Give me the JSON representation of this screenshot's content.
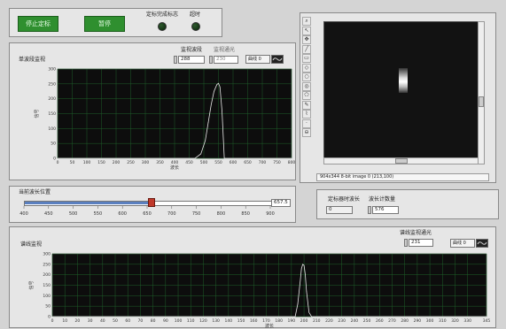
{
  "top_controls": {
    "stop_button_label": "停止定标",
    "pause_button_label": "暂停",
    "calib_done_label": "定标完成标志",
    "overrange_label": "超时"
  },
  "spectrum_panel": {
    "title": "单波段监视",
    "wavelength_ctl_label": "监视波段",
    "wavelength_value": "288",
    "extra_ctl_label": "监视通光",
    "extra_value": "230",
    "plot_btn_label": "曲线 0",
    "ylabel": "信号",
    "xlabel": "波长"
  },
  "chart_data": [
    {
      "type": "line",
      "title": "单波段监视",
      "xlabel": "波长",
      "ylabel": "信号",
      "xlim": [
        0,
        800
      ],
      "ylim": [
        0,
        300
      ],
      "x_ticks": [
        0,
        50,
        100,
        150,
        200,
        250,
        300,
        350,
        400,
        450,
        500,
        550,
        600,
        650,
        700,
        750,
        800
      ],
      "y_ticks": [
        0,
        50,
        100,
        150,
        200,
        250,
        300
      ],
      "grid": true,
      "series": [
        {
          "x": [
            0,
            470,
            490,
            505,
            515,
            525,
            535,
            545,
            550,
            555,
            562,
            570,
            800
          ],
          "y": [
            0,
            0,
            15,
            60,
            120,
            180,
            225,
            248,
            252,
            240,
            160,
            0,
            0
          ]
        }
      ]
    },
    {
      "type": "line",
      "title": "谱线监视",
      "ylabel": "信号",
      "xlabel": "波长",
      "xlim": [
        0,
        345
      ],
      "ylim": [
        0,
        300
      ],
      "x_ticks": [
        0,
        10,
        20,
        30,
        40,
        50,
        60,
        70,
        80,
        90,
        100,
        110,
        120,
        130,
        140,
        150,
        160,
        170,
        180,
        190,
        200,
        210,
        220,
        230,
        240,
        250,
        260,
        270,
        280,
        290,
        300,
        310,
        320,
        330,
        345
      ],
      "y_ticks": [
        0,
        50,
        100,
        150,
        200,
        250,
        300
      ],
      "grid": true,
      "series": [
        {
          "x": [
            0,
            193,
            195,
            197,
            198,
            199,
            200,
            201,
            202,
            204,
            206,
            345
          ],
          "y": [
            0,
            0,
            60,
            170,
            230,
            250,
            245,
            200,
            120,
            20,
            0,
            0
          ]
        }
      ]
    }
  ],
  "current_wavelength": {
    "label": "当前波长位置",
    "value": "657.5",
    "ticks": [
      "400",
      "450",
      "500",
      "550",
      "600",
      "650",
      "700",
      "750",
      "800",
      "850",
      "900"
    ],
    "min": 400,
    "max": 900,
    "slider_value": 657.5
  },
  "info_panel": {
    "calib_wave_label": "定标器时波长",
    "calib_wave_value": "0",
    "count_label": "波长计数量",
    "count_value": "576"
  },
  "image_panel": {
    "status_text": "904x344 8-bit image 0    (213,100)"
  },
  "line_panel": {
    "title": "谱线监视",
    "ctl_label": "谱线监视通光",
    "ctl_value": "231",
    "plot_btn_label": "曲线 0",
    "ylabel": "信号",
    "xlabel": "波长"
  },
  "tools": [
    "magnifier-icon",
    "pointer-icon",
    "pan-icon",
    "line-tool-icon",
    "rect-roi-icon",
    "rotated-rect-icon",
    "oval-roi-icon",
    "annulus-icon",
    "polygon-icon",
    "freehand-icon",
    "polyline-icon",
    "point-icon",
    "zoom-out-icon"
  ]
}
